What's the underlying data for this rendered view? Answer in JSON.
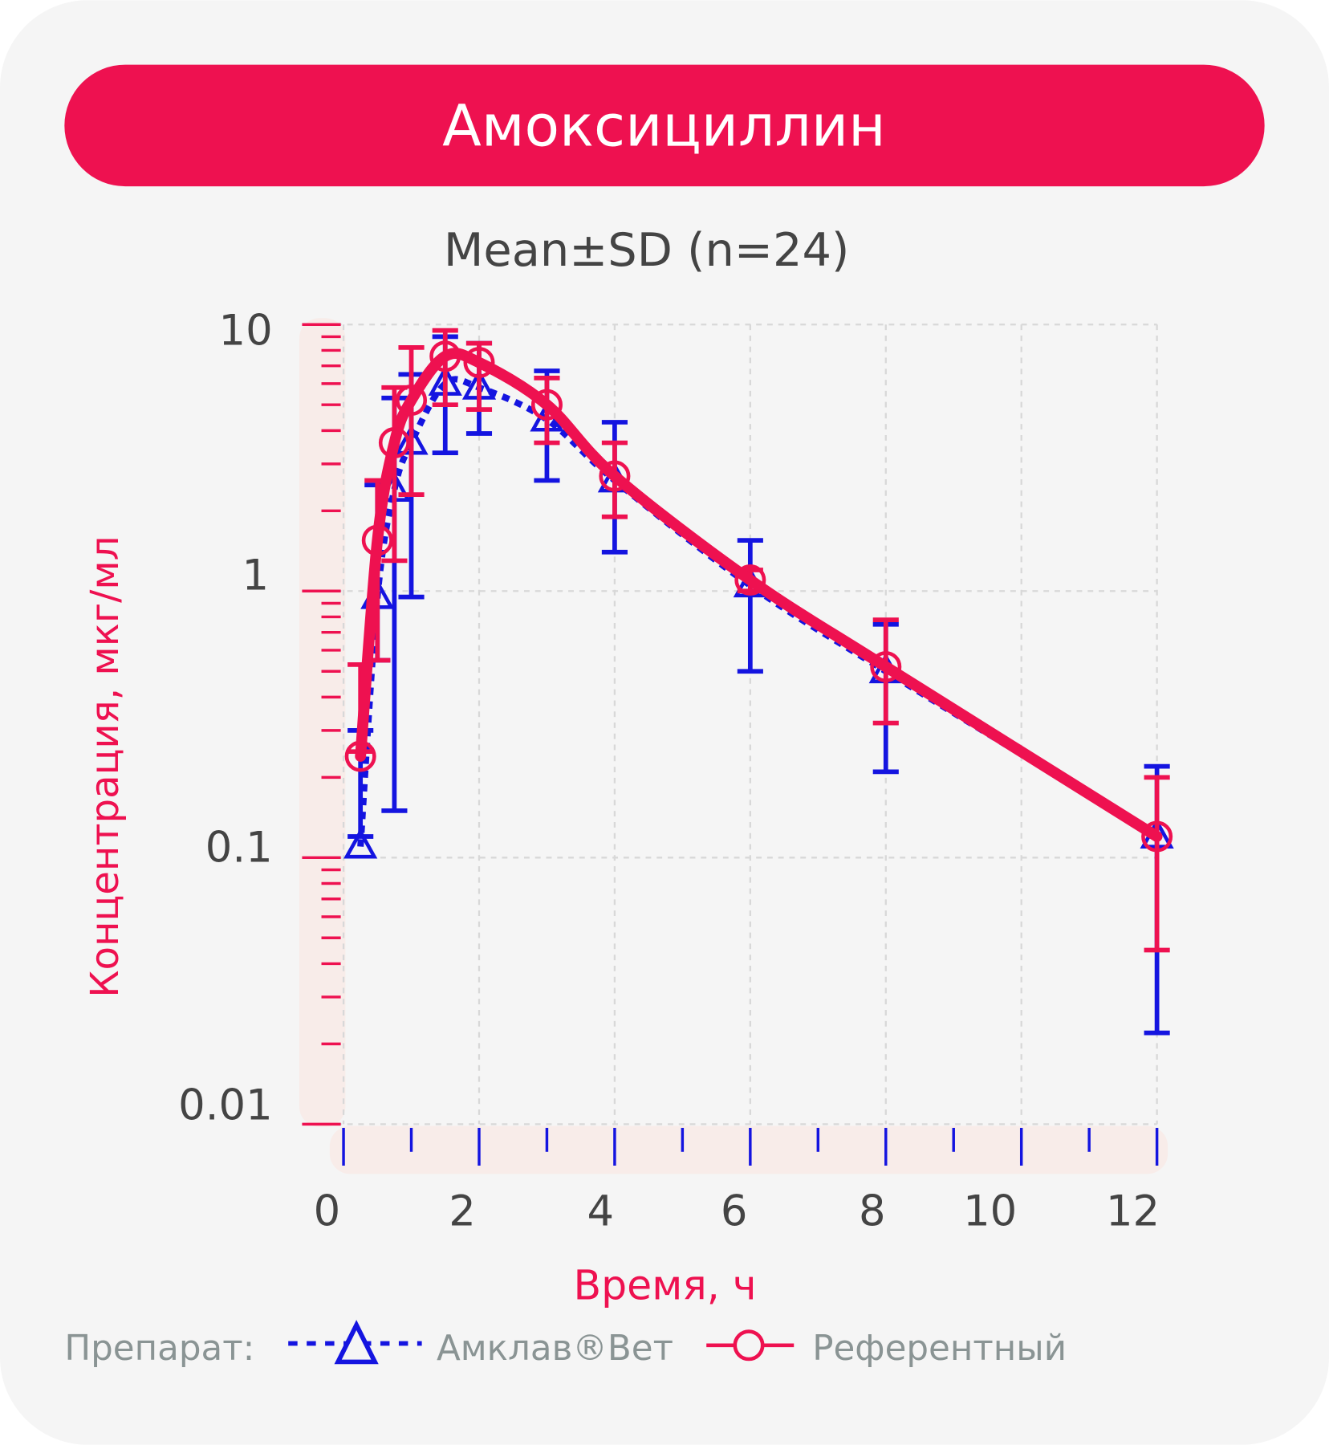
{
  "header": {
    "title": "Амоксициллин",
    "subtitle": "Mean±SD (n=24)"
  },
  "colors": {
    "banner": "#ee1150",
    "test": "#1414e0",
    "reference": "#ee1150",
    "background": "#f5f5f5",
    "axis_band": "#f8ece9",
    "grid": "#d8d8d8"
  },
  "chart_data": {
    "type": "line",
    "title": "Mean±SD (n=24)",
    "xlabel": "Время, ч",
    "ylabel": "Концентрация, мкг/мл",
    "xscale": "linear",
    "yscale": "log",
    "xlim": [
      0,
      12
    ],
    "ylim": [
      0.01,
      10
    ],
    "xticks": [
      "0",
      "2",
      "4",
      "6",
      "8",
      "10",
      "12"
    ],
    "yticks": [
      "0.01",
      "0.1",
      "1",
      "10"
    ],
    "grid": true,
    "legend_placement": "bottom",
    "legend_title": "Препарат:",
    "x": [
      0.25,
      0.5,
      0.75,
      1,
      1.5,
      2,
      3,
      4,
      6,
      8,
      12
    ],
    "series": [
      {
        "name": "Амклав®Вет",
        "marker": "triangle",
        "line": "dotted",
        "color": "#1414e0",
        "values": [
          0.11,
          0.95,
          2.4,
          3.6,
          6.0,
          5.8,
          4.4,
          2.6,
          1.05,
          0.5,
          0.12
        ],
        "sd_upper": [
          0.3,
          2.5,
          5.3,
          6.5,
          9.0,
          8.5,
          6.7,
          4.3,
          1.55,
          0.75,
          0.22
        ],
        "sd_lower": [
          0.12,
          0.55,
          0.15,
          0.95,
          3.3,
          3.9,
          2.6,
          1.4,
          0.5,
          0.21,
          0.022
        ]
      },
      {
        "name": "Референтный",
        "marker": "circle",
        "line": "solid",
        "color": "#ee1150",
        "values": [
          0.24,
          1.55,
          3.6,
          5.2,
          7.6,
          7.2,
          5.0,
          2.7,
          1.1,
          0.52,
          0.12
        ],
        "sd_upper": [
          0.53,
          2.6,
          5.8,
          8.2,
          9.5,
          8.5,
          6.3,
          3.6,
          1.2,
          0.78,
          0.2
        ],
        "sd_lower": [
          0.25,
          0.55,
          1.3,
          2.3,
          5.0,
          4.8,
          3.6,
          1.9,
          1.0,
          0.32,
          0.045
        ]
      }
    ]
  }
}
